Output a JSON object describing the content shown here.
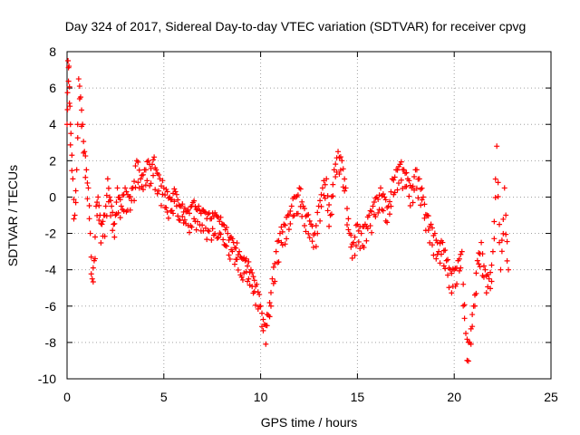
{
  "chart_data": {
    "type": "scatter",
    "title": "Day 324 of 2017, Sidereal Day-to-day VTEC variation (SDTVAR) for receiver cpvg",
    "xlabel": "GPS time / hours",
    "ylabel": "SDTVAR / TECUs",
    "xlim": [
      0,
      25
    ],
    "ylim": [
      -10,
      8
    ],
    "xticks": [
      0,
      5,
      10,
      15,
      20,
      25
    ],
    "yticks": [
      -10,
      -8,
      -6,
      -4,
      -2,
      0,
      2,
      4,
      6,
      8
    ],
    "grid": true,
    "marker": "+",
    "colors": {
      "series": "#ff0000"
    },
    "series": [
      {
        "name": "SDTVAR",
        "description": "dense trace sampled as representative points",
        "x": [
          0.0,
          0.05,
          0.1,
          0.15,
          0.2,
          0.3,
          0.4,
          0.5,
          0.6,
          0.7,
          0.8,
          0.9,
          1.0,
          1.1,
          1.2,
          1.3,
          1.4,
          1.5,
          1.6,
          1.7,
          1.8,
          1.9,
          2.0,
          2.1,
          2.2,
          2.3,
          2.4,
          2.5,
          2.6,
          2.7,
          2.8,
          3.0,
          3.2,
          3.4,
          3.6,
          3.8,
          4.0,
          4.2,
          4.4,
          4.5,
          4.6,
          4.8,
          5.0,
          5.3,
          5.6,
          5.9,
          6.2,
          6.5,
          6.8,
          7.1,
          7.4,
          7.7,
          8.0,
          8.3,
          8.6,
          8.9,
          9.2,
          9.5,
          9.8,
          10.0,
          10.2,
          10.4,
          10.6,
          10.8,
          11.0,
          11.2,
          11.4,
          11.6,
          11.8,
          12.0,
          12.2,
          12.4,
          12.6,
          12.8,
          13.0,
          13.2,
          13.4,
          13.6,
          13.8,
          14.0,
          14.2,
          14.4,
          14.6,
          14.8,
          15.0,
          15.2,
          15.4,
          15.6,
          15.8,
          16.0,
          16.2,
          16.4,
          16.6,
          16.8,
          17.0,
          17.2,
          17.4,
          17.6,
          17.8,
          18.0,
          18.2,
          18.4,
          18.6,
          18.8,
          19.0,
          19.2,
          19.4,
          19.6,
          19.8,
          20.0,
          20.2,
          20.4,
          20.6,
          20.8,
          21.0,
          21.2,
          21.4,
          21.6,
          21.8,
          22.0,
          22.2,
          22.4,
          22.6,
          22.8
        ],
        "y": [
          4.0,
          7.5,
          7.2,
          5.0,
          3.5,
          1.0,
          -1.0,
          1.5,
          6.5,
          5.5,
          4.0,
          2.5,
          1.5,
          0.5,
          -2.0,
          -4.5,
          -3.5,
          -0.5,
          0.0,
          -1.0,
          -1.5,
          -1.0,
          -0.5,
          1.0,
          0.0,
          -0.5,
          -1.5,
          -1.0,
          0.5,
          0.0,
          -0.5,
          0.5,
          0.0,
          0.5,
          2.0,
          1.0,
          1.5,
          2.0,
          1.8,
          2.2,
          1.5,
          1.0,
          0.5,
          0.0,
          0.3,
          -0.5,
          -0.8,
          -0.3,
          -0.5,
          -0.8,
          -1.2,
          -1.0,
          -1.5,
          -2.0,
          -2.5,
          -3.0,
          -3.5,
          -4.0,
          -4.8,
          -6.0,
          -7.0,
          -6.5,
          -4.5,
          -3.0,
          -2.0,
          -1.5,
          -1.0,
          -0.5,
          0.0,
          0.5,
          -0.5,
          -1.0,
          -1.5,
          -2.0,
          -0.5,
          0.5,
          1.0,
          -1.0,
          1.5,
          2.5,
          2.0,
          0.5,
          -2.0,
          -2.5,
          -1.5,
          -2.0,
          -1.5,
          -1.0,
          -0.5,
          0.0,
          0.5,
          0.0,
          -0.5,
          1.0,
          1.5,
          1.8,
          1.5,
          1.0,
          0.5,
          1.5,
          1.0,
          0.0,
          -1.0,
          -1.5,
          -2.0,
          -3.0,
          -2.5,
          -3.5,
          -4.0,
          -4.0,
          -3.5,
          -3.0,
          -7.5,
          -8.0,
          -6.0,
          -3.5,
          -2.5,
          -4.0,
          -4.5,
          -3.0,
          2.8,
          -4.0,
          0.5,
          -4.0
        ]
      }
    ]
  }
}
